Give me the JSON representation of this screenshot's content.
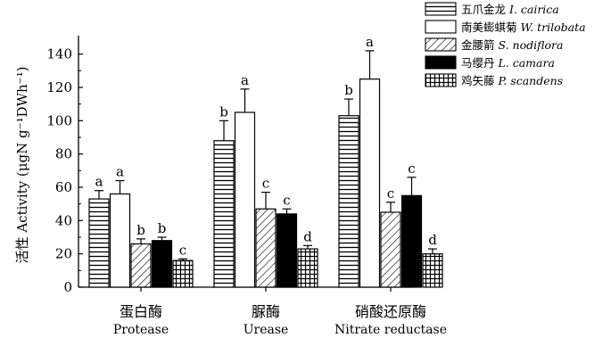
{
  "chart_data": {
    "type": "bar",
    "ylabel": "活性 Activity (μgN g⁻¹DWh⁻¹)",
    "ylim": [
      0,
      150
    ],
    "yticks": [
      0,
      20,
      40,
      60,
      80,
      100,
      120,
      140
    ],
    "grid": false,
    "legend_position": "top-right",
    "categories": [
      {
        "zh": "蛋白酶",
        "en": "Protease"
      },
      {
        "zh": "脲酶",
        "en": "Urease"
      },
      {
        "zh": "硝酸还原酶",
        "en": "Nitrate reductase"
      }
    ],
    "series": [
      {
        "name_zh": "五爪金龙",
        "name_sci": "I. cairica",
        "pattern": "hlines",
        "values": [
          53,
          88,
          103
        ],
        "errors": [
          5,
          12,
          10
        ],
        "letters": [
          "a",
          "b",
          "b"
        ]
      },
      {
        "name_zh": "南美蟛蜞菊",
        "name_sci": "W. trilobata",
        "pattern": "white",
        "values": [
          56,
          105,
          125
        ],
        "errors": [
          8,
          14,
          17
        ],
        "letters": [
          "a",
          "a",
          "a"
        ]
      },
      {
        "name_zh": "金腰箭",
        "name_sci": "S. nodiflora",
        "pattern": "diag",
        "values": [
          26,
          47,
          45
        ],
        "errors": [
          3,
          10,
          6
        ],
        "letters": [
          "b",
          "c",
          "c"
        ]
      },
      {
        "name_zh": "马缨丹",
        "name_sci": "L. camara",
        "pattern": "black",
        "values": [
          28,
          44,
          55
        ],
        "errors": [
          2,
          3,
          11
        ],
        "letters": [
          "b",
          "c",
          "c"
        ]
      },
      {
        "name_zh": "鸡矢藤",
        "name_sci": "P. scandens",
        "pattern": "grid",
        "values": [
          16,
          23,
          20
        ],
        "errors": [
          1,
          2,
          3
        ],
        "letters": [
          "c",
          "d",
          "d"
        ]
      }
    ]
  }
}
